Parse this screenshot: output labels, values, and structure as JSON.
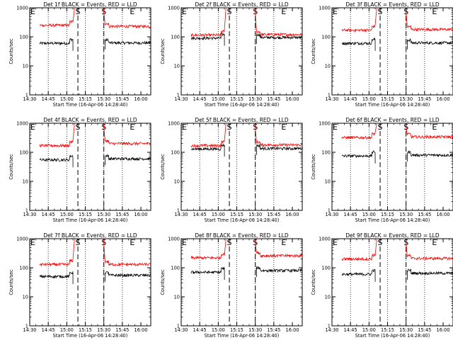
{
  "figure": {
    "background": "#ffffff",
    "foreground": "#000000",
    "panels": 9,
    "grid": "3x3"
  },
  "chart_data": [
    {
      "type": "line",
      "title": "Det 1f BLACK = Events, RED = LLD",
      "xlabel": "Start Time (16-Apr-06 14:28:40)",
      "ylabel": "Counts/sec",
      "yscale": "log",
      "ylim": [
        1,
        1000
      ],
      "x_ticks": [
        "14:30",
        "14:45",
        "15:00",
        "15:15",
        "15:30",
        "15:45",
        "16:00"
      ],
      "y_ticks": [
        "1",
        "10",
        "100",
        "1000"
      ],
      "markers": [
        {
          "label": "E",
          "x": "14:30"
        },
        {
          "label": "S",
          "x": "15:09"
        },
        {
          "label": "S",
          "x": "15:30"
        },
        {
          "label": "E",
          "x": "15:53"
        }
      ],
      "series": [
        {
          "name": "Events",
          "color": "#000000",
          "segments": [
            {
              "x": [
                "14:38",
                "15:05"
              ],
              "level": 60
            },
            {
              "x": [
                "15:31",
                "16:08"
              ],
              "level": 62
            }
          ]
        },
        {
          "name": "LLD",
          "color": "#ff0000",
          "segments": [
            {
              "x": [
                "14:38",
                "15:05"
              ],
              "level": 250
            },
            {
              "x": [
                "15:31",
                "16:08"
              ],
              "level": 230
            }
          ]
        }
      ]
    },
    {
      "type": "line",
      "title": "Det 2f BLACK = Events, RED = LLD",
      "xlabel": "Start Time (16-Apr-06 14:28:40)",
      "ylabel": "Counts/sec",
      "yscale": "log",
      "ylim": [
        1,
        1000
      ],
      "x_ticks": [
        "14:30",
        "14:45",
        "15:00",
        "15:15",
        "15:30",
        "15:45",
        "16:00"
      ],
      "y_ticks": [
        "1",
        "10",
        "100",
        "1000"
      ],
      "markers": [
        {
          "label": "E",
          "x": "14:30"
        },
        {
          "label": "S",
          "x": "15:09"
        },
        {
          "label": "S",
          "x": "15:30"
        },
        {
          "label": "E",
          "x": "15:53"
        }
      ],
      "series": [
        {
          "name": "Events",
          "color": "#000000",
          "segments": [
            {
              "x": [
                "14:38",
                "15:05"
              ],
              "level": 90
            },
            {
              "x": [
                "15:31",
                "16:08"
              ],
              "level": 95
            }
          ]
        },
        {
          "name": "LLD",
          "color": "#ff0000",
          "segments": [
            {
              "x": [
                "14:38",
                "15:05"
              ],
              "level": 115
            },
            {
              "x": [
                "15:31",
                "16:08"
              ],
              "level": 120
            }
          ]
        }
      ]
    },
    {
      "type": "line",
      "title": "Det 3f BLACK = Events, RED = LLD",
      "xlabel": "Start Time (16-Apr-06 14:28:40)",
      "ylabel": "Counts/sec",
      "yscale": "log",
      "ylim": [
        1,
        1000
      ],
      "x_ticks": [
        "14:30",
        "14:45",
        "15:00",
        "15:15",
        "15:30",
        "15:45",
        "16:00"
      ],
      "y_ticks": [
        "1",
        "10",
        "100",
        "1000"
      ],
      "markers": [
        {
          "label": "E",
          "x": "14:30"
        },
        {
          "label": "S",
          "x": "15:09"
        },
        {
          "label": "S",
          "x": "15:30"
        },
        {
          "label": "E",
          "x": "15:53"
        }
      ],
      "series": [
        {
          "name": "Events",
          "color": "#000000",
          "segments": [
            {
              "x": [
                "14:38",
                "15:05"
              ],
              "level": 60
            },
            {
              "x": [
                "15:31",
                "16:08"
              ],
              "level": 62
            }
          ]
        },
        {
          "name": "LLD",
          "color": "#ff0000",
          "segments": [
            {
              "x": [
                "14:38",
                "15:05"
              ],
              "level": 170
            },
            {
              "x": [
                "15:31",
                "16:08"
              ],
              "level": 180
            }
          ]
        }
      ]
    },
    {
      "type": "line",
      "title": "Det 4f BLACK = Events, RED = LLD",
      "xlabel": "Start Time (16-Apr-06 14:28:40)",
      "ylabel": "Counts/sec",
      "yscale": "log",
      "ylim": [
        1,
        1000
      ],
      "x_ticks": [
        "14:30",
        "14:45",
        "15:00",
        "15:15",
        "15:30",
        "15:45",
        "16:00"
      ],
      "y_ticks": [
        "1",
        "10",
        "100",
        "1000"
      ],
      "markers": [
        {
          "label": "E",
          "x": "14:30"
        },
        {
          "label": "S",
          "x": "15:09"
        },
        {
          "label": "S",
          "x": "15:30"
        },
        {
          "label": "E",
          "x": "15:53"
        }
      ],
      "series": [
        {
          "name": "Events",
          "color": "#000000",
          "segments": [
            {
              "x": [
                "14:38",
                "15:05"
              ],
              "level": 55
            },
            {
              "x": [
                "15:31",
                "16:08"
              ],
              "level": 60
            }
          ]
        },
        {
          "name": "LLD",
          "color": "#ff0000",
          "segments": [
            {
              "x": [
                "14:38",
                "15:05"
              ],
              "level": 170
            },
            {
              "x": [
                "15:31",
                "16:08"
              ],
              "level": 200
            }
          ]
        }
      ]
    },
    {
      "type": "line",
      "title": "Det 5f BLACK = Events, RED = LLD",
      "xlabel": "Start Time (16-Apr-06 14:28:40)",
      "ylabel": "Counts/sec",
      "yscale": "log",
      "ylim": [
        1,
        1000
      ],
      "x_ticks": [
        "14:30",
        "14:45",
        "15:00",
        "15:15",
        "15:30",
        "15:45",
        "16:00"
      ],
      "y_ticks": [
        "1",
        "10",
        "100",
        "1000"
      ],
      "markers": [
        {
          "label": "E",
          "x": "14:30"
        },
        {
          "label": "S",
          "x": "15:09"
        },
        {
          "label": "S",
          "x": "15:30"
        },
        {
          "label": "E",
          "x": "15:53"
        }
      ],
      "series": [
        {
          "name": "Events",
          "color": "#000000",
          "segments": [
            {
              "x": [
                "14:38",
                "15:05"
              ],
              "level": 130
            },
            {
              "x": [
                "15:31",
                "16:08"
              ],
              "level": 135
            }
          ]
        },
        {
          "name": "LLD",
          "color": "#ff0000",
          "segments": [
            {
              "x": [
                "14:38",
                "15:05"
              ],
              "level": 170
            },
            {
              "x": [
                "15:31",
                "16:08"
              ],
              "level": 180
            }
          ]
        }
      ]
    },
    {
      "type": "line",
      "title": "Det 6f BLACK = Events, RED = LLD",
      "xlabel": "Start Time (16-Apr-06 14:28:40)",
      "ylabel": "Counts/sec",
      "yscale": "log",
      "ylim": [
        1,
        1000
      ],
      "x_ticks": [
        "14:30",
        "14:45",
        "15:00",
        "15:15",
        "15:30",
        "15:45",
        "16:00"
      ],
      "y_ticks": [
        "1",
        "10",
        "100",
        "1000"
      ],
      "markers": [
        {
          "label": "E",
          "x": "14:30"
        },
        {
          "label": "S",
          "x": "15:09"
        },
        {
          "label": "S",
          "x": "15:30"
        },
        {
          "label": "E",
          "x": "15:53"
        }
      ],
      "series": [
        {
          "name": "Events",
          "color": "#000000",
          "segments": [
            {
              "x": [
                "14:38",
                "15:05"
              ],
              "level": 75
            },
            {
              "x": [
                "15:31",
                "16:08"
              ],
              "level": 80
            }
          ]
        },
        {
          "name": "LLD",
          "color": "#ff0000",
          "segments": [
            {
              "x": [
                "14:38",
                "15:05"
              ],
              "level": 320
            },
            {
              "x": [
                "15:31",
                "16:08"
              ],
              "level": 340
            }
          ]
        }
      ]
    },
    {
      "type": "line",
      "title": "Det 7f BLACK = Events, RED = LLD",
      "xlabel": "Start Time (16-Apr-06 14:28:40)",
      "ylabel": "Counts/sec",
      "yscale": "log",
      "ylim": [
        1,
        1000
      ],
      "x_ticks": [
        "14:30",
        "14:45",
        "15:00",
        "15:15",
        "15:30",
        "15:45",
        "16:00"
      ],
      "y_ticks": [
        "1",
        "10",
        "100",
        "1000"
      ],
      "markers": [
        {
          "label": "E",
          "x": "14:30"
        },
        {
          "label": "S",
          "x": "15:09"
        },
        {
          "label": "S",
          "x": "15:30"
        },
        {
          "label": "E",
          "x": "15:53"
        }
      ],
      "series": [
        {
          "name": "Events",
          "color": "#000000",
          "segments": [
            {
              "x": [
                "14:38",
                "15:05"
              ],
              "level": 50
            },
            {
              "x": [
                "15:31",
                "16:08"
              ],
              "level": 55
            }
          ]
        },
        {
          "name": "LLD",
          "color": "#ff0000",
          "segments": [
            {
              "x": [
                "14:38",
                "15:05"
              ],
              "level": 130
            },
            {
              "x": [
                "15:31",
                "16:08"
              ],
              "level": 130
            }
          ]
        }
      ]
    },
    {
      "type": "line",
      "title": "Det 8f BLACK = Events, RED = LLD",
      "xlabel": "Start Time (16-Apr-06 14:28:40)",
      "ylabel": "Counts/sec",
      "yscale": "log",
      "ylim": [
        1,
        1000
      ],
      "x_ticks": [
        "14:30",
        "14:45",
        "15:00",
        "15:15",
        "15:30",
        "15:45",
        "16:00"
      ],
      "y_ticks": [
        "1",
        "10",
        "100",
        "1000"
      ],
      "markers": [
        {
          "label": "E",
          "x": "14:30"
        },
        {
          "label": "S",
          "x": "15:09"
        },
        {
          "label": "S",
          "x": "15:30"
        },
        {
          "label": "E",
          "x": "15:53"
        }
      ],
      "series": [
        {
          "name": "Events",
          "color": "#000000",
          "segments": [
            {
              "x": [
                "14:38",
                "15:05"
              ],
              "level": 70
            },
            {
              "x": [
                "15:31",
                "16:08"
              ],
              "level": 80
            }
          ]
        },
        {
          "name": "LLD",
          "color": "#ff0000",
          "segments": [
            {
              "x": [
                "14:38",
                "15:05"
              ],
              "level": 220
            },
            {
              "x": [
                "15:31",
                "16:08"
              ],
              "level": 260
            }
          ]
        }
      ]
    },
    {
      "type": "line",
      "title": "Det 9f BLACK = Events, RED = LLD",
      "xlabel": "Start Time (16-Apr-06 14:28:40)",
      "ylabel": "Counts/sec",
      "yscale": "log",
      "ylim": [
        1,
        1000
      ],
      "x_ticks": [
        "14:30",
        "14:45",
        "15:00",
        "15:15",
        "15:30",
        "15:45",
        "16:00"
      ],
      "y_ticks": [
        "1",
        "10",
        "100",
        "1000"
      ],
      "markers": [
        {
          "label": "E",
          "x": "14:30"
        },
        {
          "label": "S",
          "x": "15:09"
        },
        {
          "label": "S",
          "x": "15:30"
        },
        {
          "label": "E",
          "x": "15:53"
        }
      ],
      "series": [
        {
          "name": "Events",
          "color": "#000000",
          "segments": [
            {
              "x": [
                "14:38",
                "15:05"
              ],
              "level": 60
            },
            {
              "x": [
                "15:31",
                "16:08"
              ],
              "level": 65
            }
          ]
        },
        {
          "name": "LLD",
          "color": "#ff0000",
          "segments": [
            {
              "x": [
                "14:38",
                "15:05"
              ],
              "level": 200
            },
            {
              "x": [
                "15:31",
                "16:08"
              ],
              "level": 210
            }
          ]
        }
      ]
    }
  ]
}
